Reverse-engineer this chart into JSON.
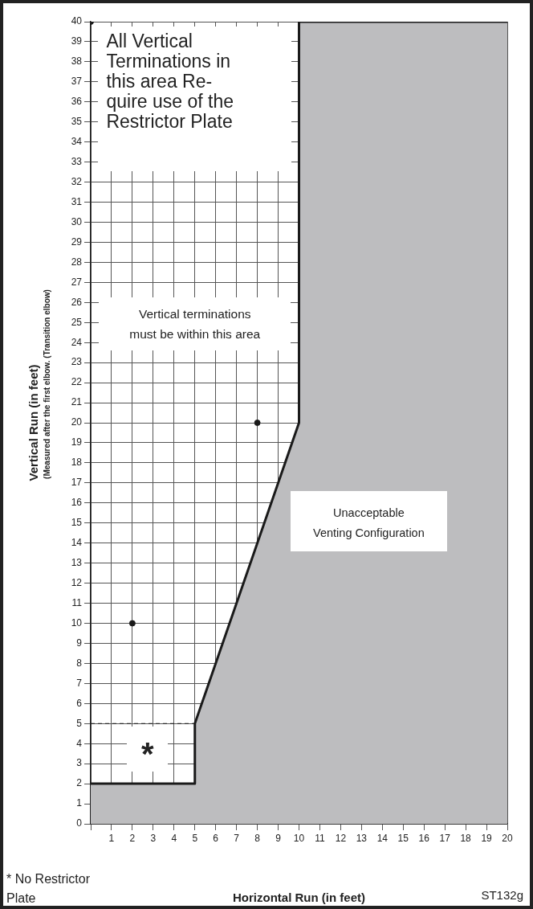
{
  "chart_data": {
    "type": "line",
    "xlabel": "Horizontal Run (in feet)",
    "ylabel": "Vertical Run (in feet)",
    "series": [
      {
        "type": "area",
        "color": "#bdbdbf",
        "x": [
          0,
          5,
          5,
          10,
          10,
          20
        ],
        "values": [
          2,
          2,
          5,
          20,
          40,
          40
        ]
      },
      {
        "type": "line",
        "color": "#1a1a1a",
        "line_style": "dashed",
        "x": [
          0,
          5
        ],
        "values": [
          5,
          5
        ]
      },
      {
        "type": "scatter",
        "color": "#1a1a1a",
        "marker": "circle",
        "x": [
          2,
          8,
          0
        ],
        "values": [
          10,
          20,
          40
        ]
      }
    ],
    "xlim": [
      0,
      20
    ],
    "ylim": [
      0,
      40
    ],
    "xticks": [
      {
        "value": 0,
        "label": null
      },
      1,
      2,
      3,
      4,
      5,
      6,
      7,
      8,
      9,
      10,
      11,
      12,
      13,
      14,
      15,
      16,
      17,
      18,
      19,
      20
    ],
    "yticks": [
      0,
      1,
      2,
      3,
      4,
      5,
      6,
      7,
      8,
      9,
      10,
      11,
      12,
      13,
      14,
      15,
      16,
      17,
      18,
      19,
      20,
      21,
      22,
      23,
      24,
      25,
      26,
      27,
      28,
      29,
      30,
      31,
      32,
      33,
      34,
      35,
      36,
      37,
      38,
      39,
      40
    ],
    "grid": true,
    "legend": false,
    "annotations": [
      "All Vertical\nTerminations in\nthis area Re-\nquire use of the\nRestrictor Plate",
      "Vertical terminations\nmust be within this area",
      "Unacceptable\nVenting  Configuration",
      "*",
      "(Measured after the first elbow. (Transition elbow)",
      "* No Restrictor\nPlate",
      "ST132g"
    ]
  }
}
